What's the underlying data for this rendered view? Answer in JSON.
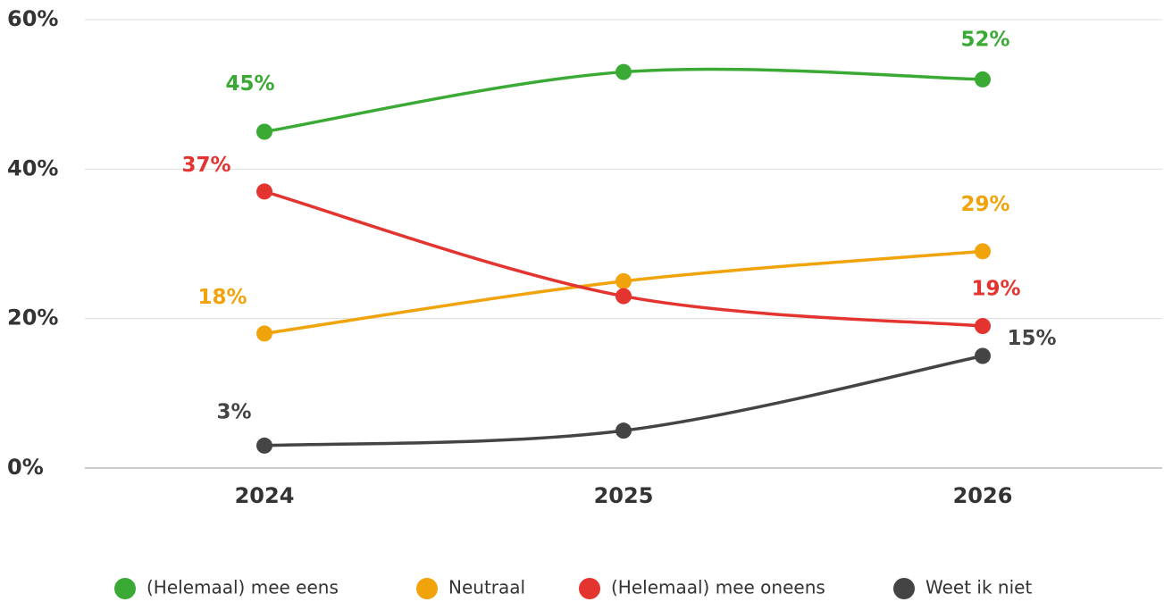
{
  "chart_data": {
    "type": "line",
    "categories": [
      "2024",
      "2025",
      "2026"
    ],
    "ylim": [
      0,
      60
    ],
    "yticks": [
      {
        "value": 0,
        "label": "0%"
      },
      {
        "value": 20,
        "label": "20%"
      },
      {
        "value": 40,
        "label": "40%"
      },
      {
        "value": 60,
        "label": "60%"
      }
    ],
    "grid": true,
    "legend": "bottom",
    "series": [
      {
        "name": "(Helemaal) mee eens",
        "color": "#3aaa35",
        "values": [
          45,
          53,
          52
        ],
        "value_labels": [
          "45%",
          null,
          "52%"
        ]
      },
      {
        "name": "Neutraal",
        "color": "#f0a30a",
        "values": [
          18,
          25,
          29
        ],
        "value_labels": [
          "18%",
          null,
          "29%"
        ]
      },
      {
        "name": "(Helemaal) mee oneens",
        "color": "#e3342f",
        "values": [
          37,
          23,
          19
        ],
        "value_labels": [
          "37%",
          null,
          "19%"
        ]
      },
      {
        "name": "Weet ik niet",
        "color": "#444444",
        "values": [
          3,
          5,
          15
        ],
        "value_labels": [
          "3%",
          null,
          "15%"
        ]
      }
    ]
  }
}
